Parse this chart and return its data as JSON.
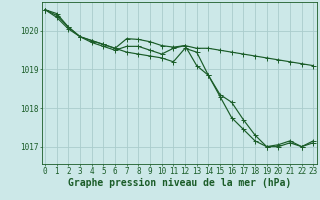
{
  "title": "Graphe pression niveau de la mer (hPa)",
  "background_color": "#cce8e8",
  "grid_color": "#aacccc",
  "line_color": "#1a5c28",
  "text_color": "#1a5c28",
  "xlim": [
    -0.3,
    23.3
  ],
  "ylim": [
    1016.55,
    1020.75
  ],
  "yticks": [
    1017,
    1018,
    1019,
    1020
  ],
  "xticks": [
    0,
    1,
    2,
    3,
    4,
    5,
    6,
    7,
    8,
    9,
    10,
    11,
    12,
    13,
    14,
    15,
    16,
    17,
    18,
    19,
    20,
    21,
    22,
    23
  ],
  "line1_y": [
    1020.55,
    1020.45,
    1020.1,
    1019.85,
    1019.75,
    1019.65,
    1019.55,
    1019.8,
    1019.78,
    1019.72,
    1019.62,
    1019.58,
    1019.62,
    1019.55,
    1019.55,
    1019.5,
    1019.45,
    1019.4,
    1019.35,
    1019.3,
    1019.25,
    1019.2,
    1019.15,
    1019.1
  ],
  "line2_y": [
    1020.55,
    1020.4,
    1020.1,
    1019.85,
    1019.75,
    1019.65,
    1019.55,
    1019.45,
    1019.4,
    1019.35,
    1019.3,
    1019.2,
    1019.55,
    1019.45,
    1018.85,
    1018.35,
    1018.15,
    1017.7,
    1017.3,
    1017.0,
    1017.05,
    1017.15,
    1017.0,
    1017.15
  ],
  "line3_y": [
    1020.55,
    1020.35,
    1020.05,
    1019.85,
    1019.7,
    1019.6,
    1019.5,
    1019.6,
    1019.6,
    1019.5,
    1019.4,
    1019.55,
    1019.62,
    1019.1,
    1018.85,
    1018.3,
    1017.75,
    1017.45,
    1017.15,
    1017.0,
    1017.0,
    1017.1,
    1017.0,
    1017.1
  ],
  "marker_size": 2.0,
  "linewidth": 0.85,
  "title_fontsize": 7,
  "tick_fontsize": 5.5
}
